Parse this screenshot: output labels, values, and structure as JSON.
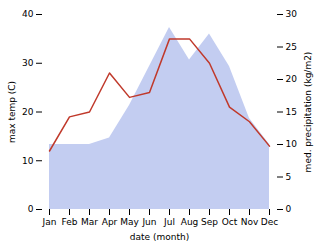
{
  "chart_data": {
    "type": "line",
    "xlabel": "date (month)",
    "ylabel": "max temp (C)",
    "y2label": "med. precipitation (kg/m2)",
    "categories": [
      "Jan",
      "Feb",
      "Mar",
      "Apr",
      "May",
      "Jun",
      "Jul",
      "Aug",
      "Sep",
      "Oct",
      "Nov",
      "Dec"
    ],
    "series": [
      {
        "type": "area",
        "axis": "y2",
        "color": "#b8c4ee",
        "values": [
          10,
          10,
          10,
          11,
          16,
          22,
          28,
          23,
          27,
          22,
          14,
          10
        ]
      },
      {
        "type": "line",
        "color": "#c0392b",
        "values": [
          12,
          19,
          20,
          28,
          23,
          24,
          35,
          35,
          30,
          21,
          18,
          13
        ]
      }
    ],
    "ylim": [
      0,
      40
    ],
    "yticks": [
      0,
      10,
      20,
      30,
      40
    ],
    "y2lim": [
      0,
      30
    ],
    "y2ticks": [
      0,
      5,
      10,
      15,
      20,
      25,
      30
    ],
    "grid": false
  }
}
